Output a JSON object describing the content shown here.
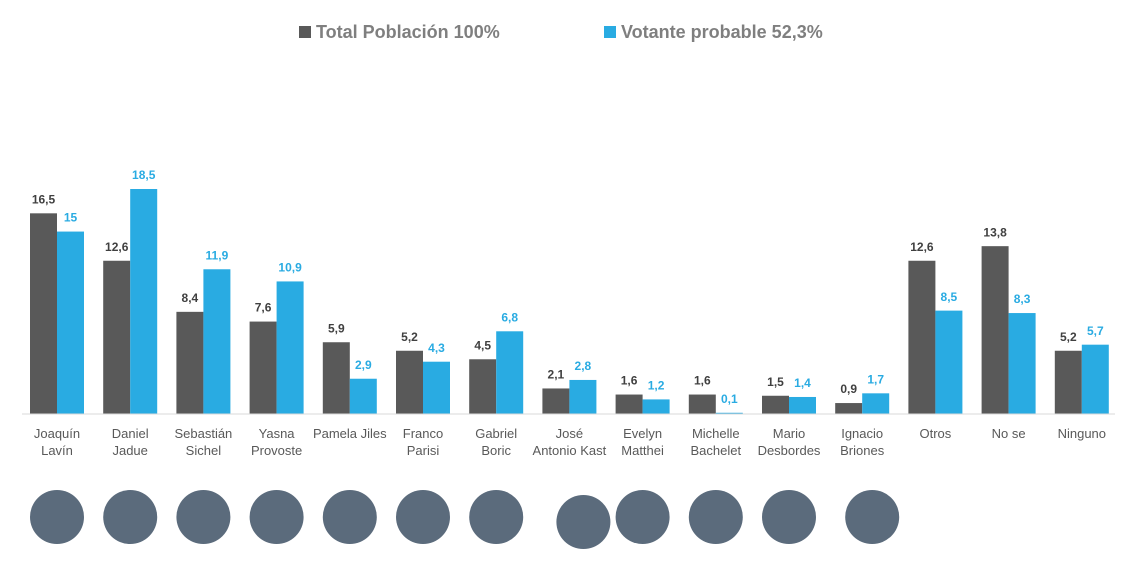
{
  "chart_data": {
    "type": "bar",
    "categories": [
      "Joaquín Lavín",
      "Daniel Jadue",
      "Sebastián Sichel",
      "Yasna Provoste",
      "Pamela Jiles",
      "Franco Parisi",
      "Gabriel Boric",
      "José Antonio Kast",
      "Evelyn Matthei",
      "Michelle Bachelet",
      "Mario Desbordes",
      "Ignacio Briones",
      "Otros",
      "No se",
      "Ninguno"
    ],
    "series": [
      {
        "name": "Total Población 100%",
        "color": "#595959",
        "values": [
          16.5,
          12.6,
          8.4,
          7.6,
          5.9,
          5.2,
          4.5,
          2.1,
          1.6,
          1.6,
          1.5,
          0.9,
          12.6,
          13.8,
          5.2
        ],
        "value_labels": [
          "16,5",
          "12,6",
          "8,4",
          "7,6",
          "5,9",
          "5,2",
          "4,5",
          "2,1",
          "1,6",
          "1,6",
          "1,5",
          "0,9",
          "12,6",
          "13,8",
          "5,2"
        ]
      },
      {
        "name": "Votante probable 52,3%",
        "color": "#29abe2",
        "values": [
          15,
          18.5,
          11.9,
          10.9,
          2.9,
          4.3,
          6.8,
          2.8,
          1.2,
          0.1,
          1.4,
          1.7,
          8.5,
          8.3,
          5.7
        ],
        "value_labels": [
          "15",
          "18,5",
          "11,9",
          "10,9",
          "2,9",
          "4,3",
          "6,8",
          "2,8",
          "1,2",
          "0,1",
          "1,4",
          "1,7",
          "8,5",
          "8,3",
          "5,7"
        ]
      }
    ]
  }
}
